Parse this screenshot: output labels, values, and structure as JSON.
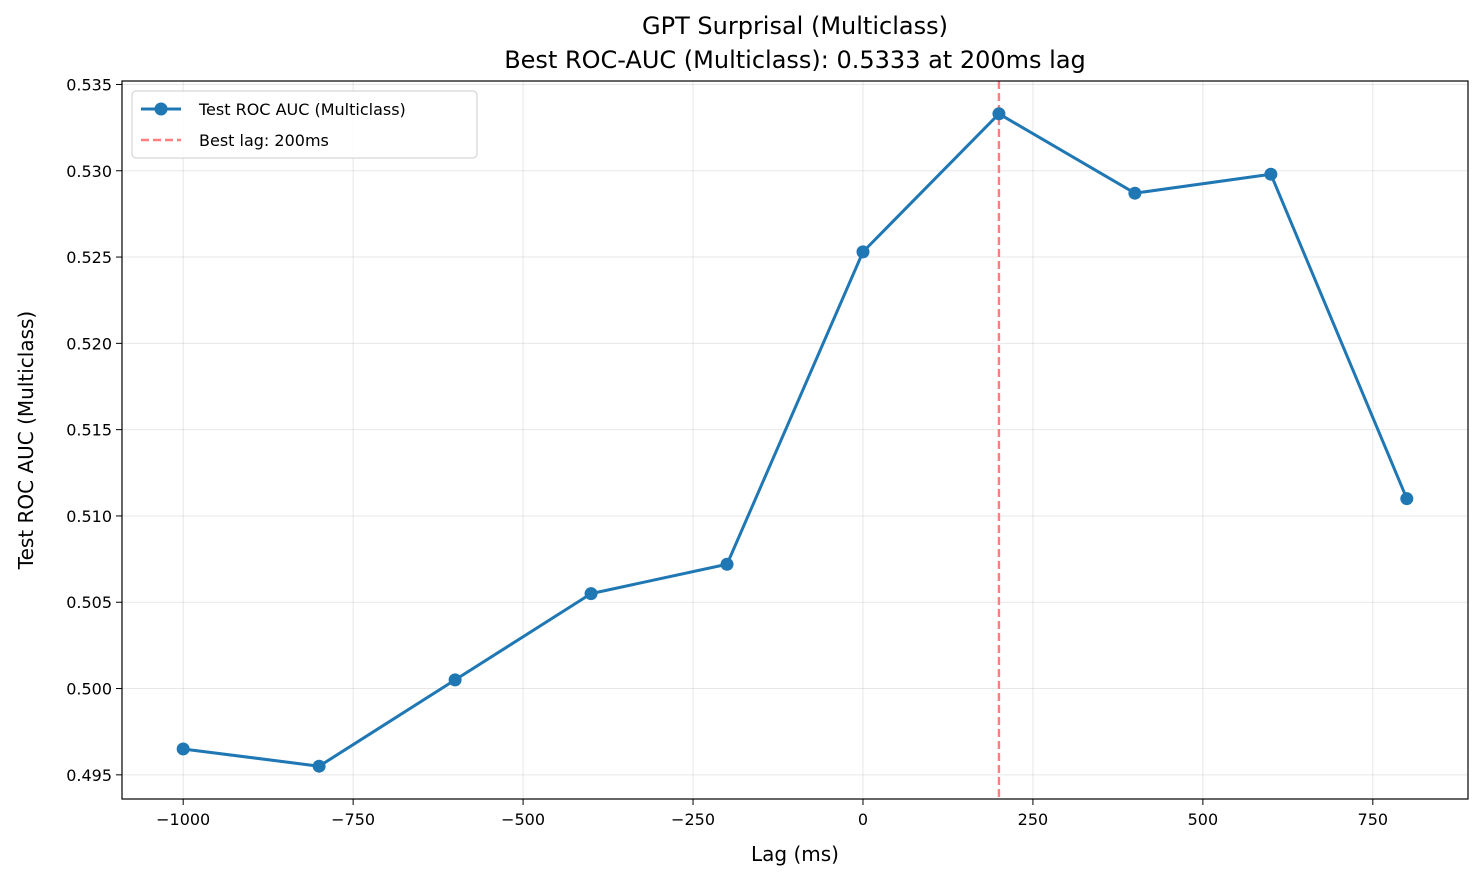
{
  "chart_data": {
    "type": "line",
    "title": "GPT Surprisal (Multiclass)",
    "subtitle": "Best ROC-AUC (Multiclass): 0.5333 at 200ms lag",
    "xlabel": "Lag (ms)",
    "ylabel": "Test ROC AUC (Multiclass)",
    "xlim": [
      -1090,
      890
    ],
    "ylim": [
      0.4936,
      0.5352
    ],
    "x_ticks": [
      -1000,
      -750,
      -500,
      -250,
      0,
      250,
      500,
      750
    ],
    "x_tick_labels": [
      "−1000",
      "−750",
      "−500",
      "−250",
      "0",
      "250",
      "500",
      "750"
    ],
    "y_ticks": [
      0.495,
      0.5,
      0.505,
      0.51,
      0.515,
      0.52,
      0.525,
      0.53,
      0.535
    ],
    "y_tick_labels": [
      "0.495",
      "0.500",
      "0.505",
      "0.510",
      "0.515",
      "0.520",
      "0.525",
      "0.530",
      "0.535"
    ],
    "grid": true,
    "legend_position": "top-left",
    "series": [
      {
        "name": "Test ROC AUC (Multiclass)",
        "color": "#1f77b4",
        "x": [
          -1000,
          -800,
          -600,
          -400,
          -200,
          0,
          200,
          400,
          600,
          800
        ],
        "values": [
          0.4965,
          0.4955,
          0.5005,
          0.5055,
          0.5072,
          0.5253,
          0.5333,
          0.5287,
          0.5298,
          0.511
        ]
      }
    ],
    "reference_line": {
      "label": "Best lag: 200ms",
      "x": 200,
      "color": "#ff7f7f",
      "style": "dashed"
    }
  }
}
